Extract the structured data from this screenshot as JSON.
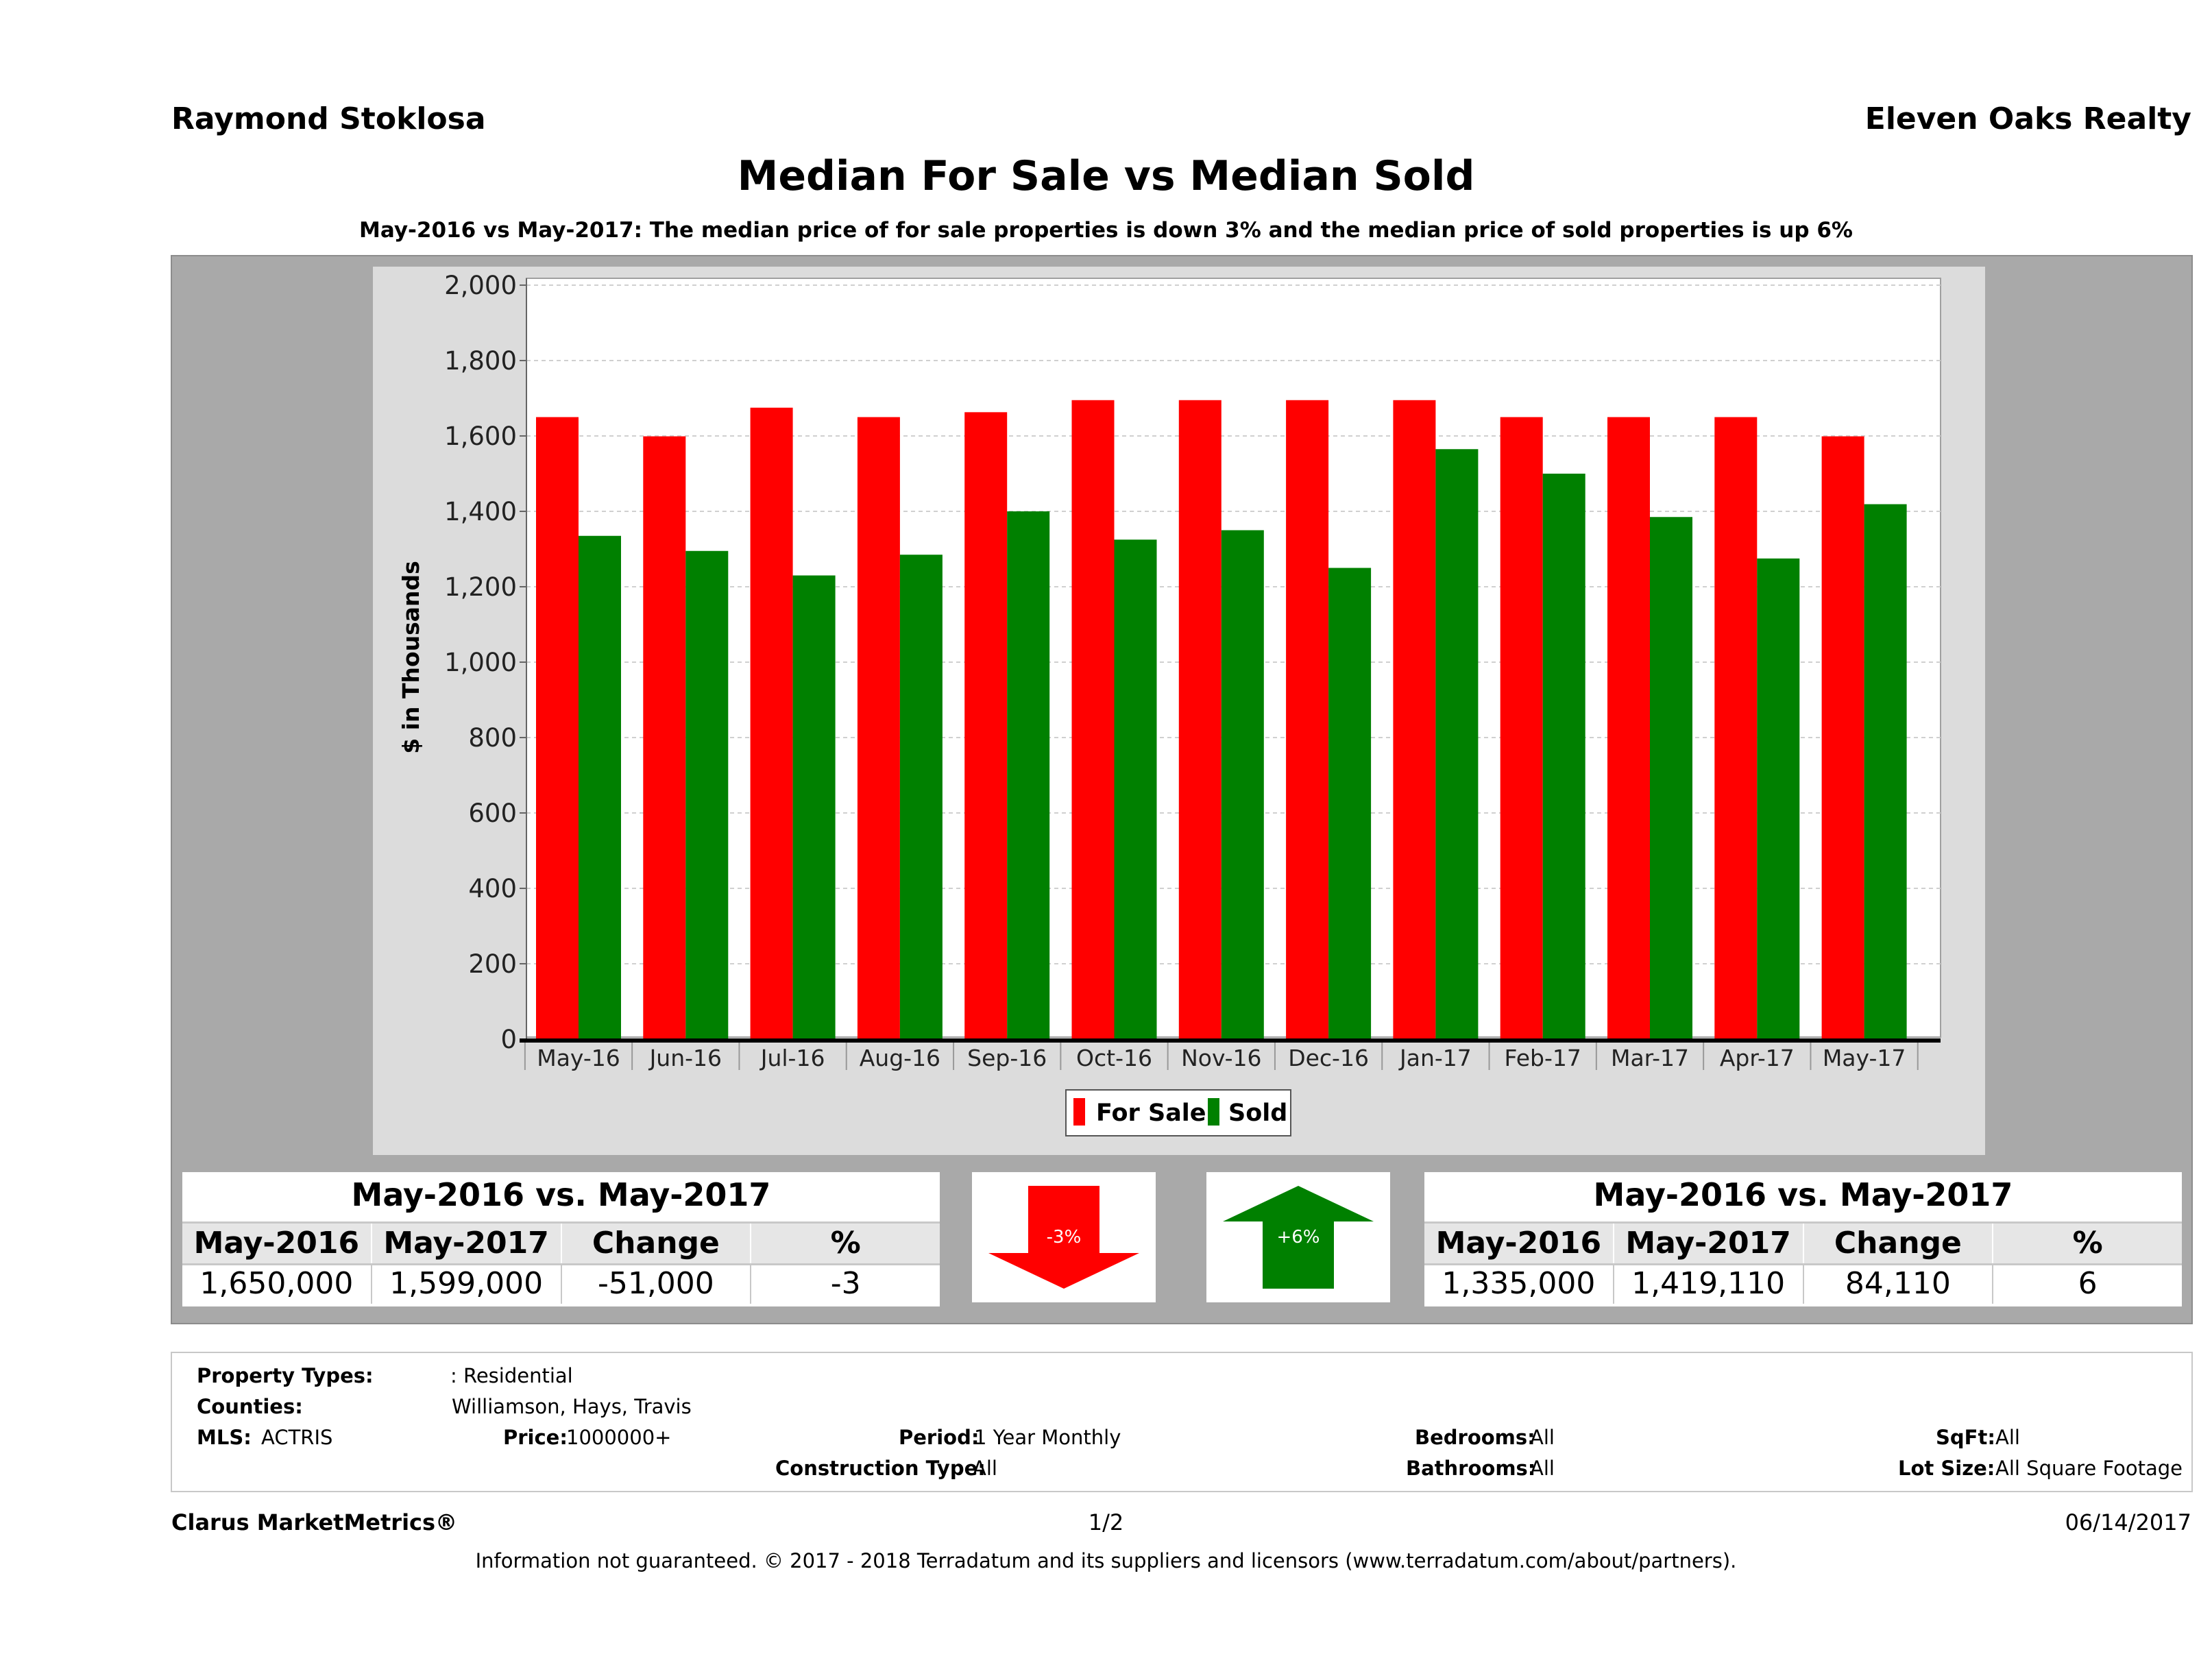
{
  "header": {
    "agent": "Raymond Stoklosa",
    "company": "Eleven Oaks Realty",
    "title": "Median For Sale vs Median Sold",
    "subtitle": "May-2016 vs May-2017: The median price of for sale properties is down 3% and the median price of sold properties is up 6%"
  },
  "chart_data": {
    "type": "bar",
    "categories": [
      "May-16",
      "Jun-16",
      "Jul-16",
      "Aug-16",
      "Sep-16",
      "Oct-16",
      "Nov-16",
      "Dec-16",
      "Jan-17",
      "Feb-17",
      "Mar-17",
      "Apr-17",
      "May-17"
    ],
    "series": [
      {
        "name": "For Sale",
        "color": "#ff0000",
        "values": [
          1650,
          1599,
          1675,
          1650,
          1663,
          1695,
          1695,
          1695,
          1695,
          1650,
          1650,
          1650,
          1599
        ]
      },
      {
        "name": "Sold",
        "color": "#008000",
        "values": [
          1335,
          1295,
          1230,
          1285,
          1400,
          1325,
          1350,
          1250,
          1565,
          1500,
          1385,
          1275,
          1419
        ]
      }
    ],
    "ylabel": "$ in Thousands",
    "ylim": [
      0,
      2000
    ],
    "yticks": [
      "0",
      "200",
      "400",
      "600",
      "800",
      "1,000",
      "1,200",
      "1,400",
      "1,600",
      "1,800",
      "2,000"
    ],
    "grid": true,
    "legend": "bottom-center"
  },
  "for_sale_stats": {
    "title": "May-2016 vs. May-2017",
    "headers": [
      "May-2016",
      "May-2017",
      "Change",
      "%"
    ],
    "values": [
      "1,650,000",
      "1,599,000",
      "-51,000",
      "-3"
    ]
  },
  "sold_stats": {
    "title": "May-2016 vs. May-2017",
    "headers": [
      "May-2016",
      "May-2017",
      "Change",
      "%"
    ],
    "values": [
      "1,335,000",
      "1,419,110",
      "84,110",
      "6"
    ]
  },
  "arrows": {
    "down_label": "-3%",
    "down_color": "#ff0000",
    "up_label": "+6%",
    "up_color": "#008000"
  },
  "info": {
    "property_types_label": "Property Types:",
    "property_types": ": Residential",
    "counties_label": "Counties:",
    "counties": "Williamson, Hays, Travis",
    "mls_label": "MLS:",
    "mls": "ACTRIS",
    "price_label": "Price:",
    "price": "1000000+",
    "period_label": "Period:",
    "period": "1 Year Monthly",
    "construction_label": "Construction Type:",
    "construction": "All",
    "bedrooms_label": "Bedrooms:",
    "bedrooms": "All",
    "bathrooms_label": "Bathrooms:",
    "bathrooms": "All",
    "sqft_label": "SqFt:",
    "sqft": "All",
    "lot_label": "Lot Size:",
    "lot": "All Square Footage"
  },
  "footer": {
    "brand": "Clarus MarketMetrics®",
    "page": "1/2",
    "date": "06/14/2017",
    "disclaimer": "Information not guaranteed. © 2017 - 2018 Terradatum and its suppliers and licensors (www.terradatum.com/about/partners)."
  }
}
